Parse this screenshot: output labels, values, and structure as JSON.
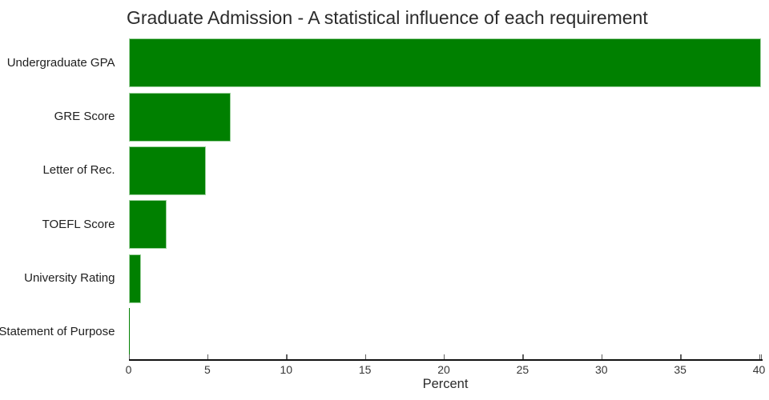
{
  "title": "Graduate Admission - A statistical influence of each requirement",
  "chart_data": {
    "type": "bar",
    "orientation": "horizontal",
    "title": "Graduate Admission - A statistical influence of each requirement",
    "categories": [
      "Undergraduate GPA",
      "GRE Score",
      "Letter of Rec.",
      "TOEFL Score",
      "University Rating",
      "Statement of Purpose"
    ],
    "values": [
      40.1,
      6.5,
      4.9,
      2.4,
      0.8,
      0.07
    ],
    "xlabel": "Percent",
    "ylabel": "",
    "xlim": [
      0,
      40.2
    ],
    "xticks": [
      0,
      5,
      10,
      15,
      20,
      25,
      30,
      35,
      40
    ],
    "grid": false,
    "legend": false,
    "bar_color": "#008000",
    "bar_border_color": "#9ed29e",
    "axis_color": "#111111",
    "tick_mark_color": "#5f5f5f",
    "tick_label_color": "#363636",
    "text_color": "#202020"
  }
}
